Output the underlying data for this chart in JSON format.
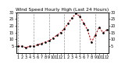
{
  "title": "Wind Speed Hourly High (Last 24 Hours)",
  "x_labels": [
    "1",
    "2",
    "3",
    "4",
    "5",
    "6",
    "7",
    "8",
    "9",
    "10",
    "11",
    "12",
    "1",
    "2",
    "3",
    "4",
    "5",
    "6",
    "7",
    "8",
    "9",
    "10",
    "11",
    "12"
  ],
  "x_values": [
    0,
    1,
    2,
    3,
    4,
    5,
    6,
    7,
    8,
    9,
    10,
    11,
    12,
    13,
    14,
    15,
    16,
    17,
    18,
    19,
    20,
    21,
    22,
    23
  ],
  "y_values": [
    5,
    5,
    4,
    5,
    5,
    6,
    7,
    8,
    9,
    11,
    13,
    15,
    18,
    22,
    26,
    29,
    27,
    22,
    17,
    8,
    13,
    19,
    15,
    17
  ],
  "y_min": 0,
  "y_max": 30,
  "y_ticks": [
    5,
    10,
    15,
    20,
    25,
    30
  ],
  "grid_x_positions": [
    0,
    4,
    8,
    12,
    16,
    20
  ],
  "line_color": "#CC0000",
  "marker_color": "#000000",
  "bg_color": "#ffffff",
  "plot_bg_color": "#ffffff",
  "grid_color": "#999999",
  "title_fontsize": 4.2,
  "tick_fontsize": 3.5,
  "label_color": "#000000"
}
